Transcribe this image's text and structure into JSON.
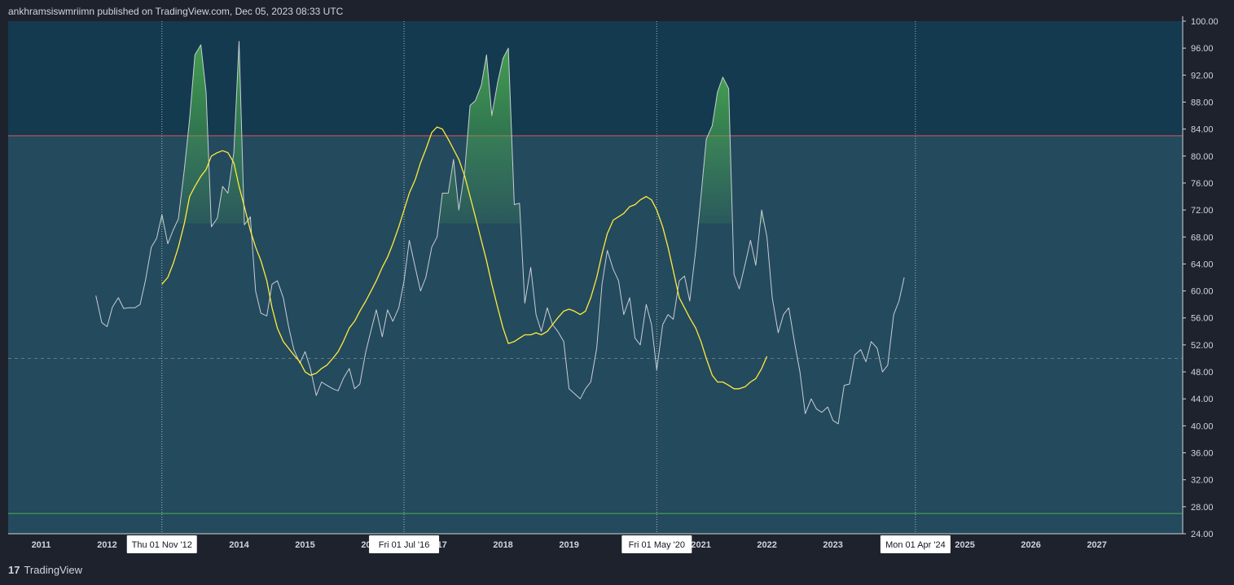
{
  "header": {
    "publish_text": "ankhramsiswmriimn published on TradingView.com, Dec 05, 2023 08:33 UTC"
  },
  "footer": {
    "brand": "TradingView",
    "logo_mark": "17"
  },
  "colors": {
    "background": "#1e222d",
    "plot_top": "#133a4f",
    "plot_bottom": "#244a5e",
    "price_line": "#c9cdd4",
    "ma_line": "#ffeb3b",
    "upper_line": "#e05656",
    "lower_line": "#4caf50",
    "mid_line": "#7f8c99",
    "fill_green": "#4caf50"
  },
  "chart_data": {
    "type": "line",
    "title": "",
    "ylim": [
      24,
      100
    ],
    "y_ticks": [
      "24.00",
      "28.00",
      "32.00",
      "36.00",
      "40.00",
      "44.00",
      "48.00",
      "52.00",
      "56.00",
      "60.00",
      "64.00",
      "68.00",
      "72.00",
      "76.00",
      "80.00",
      "84.00",
      "88.00",
      "92.00",
      "96.00",
      "100.00"
    ],
    "x_range": [
      2010.5,
      2028.3
    ],
    "x_ticks": [
      {
        "label": "2011",
        "x": 2011
      },
      {
        "label": "2012",
        "x": 2012
      },
      {
        "label": "2013",
        "x": 2013
      },
      {
        "label": "2014",
        "x": 2014
      },
      {
        "label": "2015",
        "x": 2015
      },
      {
        "label": "2016",
        "x": 2016
      },
      {
        "label": "2017",
        "x": 2017
      },
      {
        "label": "2018",
        "x": 2018
      },
      {
        "label": "2019",
        "x": 2019
      },
      {
        "label": "2020",
        "x": 2020
      },
      {
        "label": "2021",
        "x": 2021
      },
      {
        "label": "2022",
        "x": 2022
      },
      {
        "label": "2023",
        "x": 2023
      },
      {
        "label": "2024",
        "x": 2024
      },
      {
        "label": "2025",
        "x": 2025
      },
      {
        "label": "2026",
        "x": 2026
      },
      {
        "label": "2027",
        "x": 2027
      }
    ],
    "date_markers": [
      {
        "label": "Thu 01 Nov '12",
        "x": 2012.83
      },
      {
        "label": "Fri 01 Jul '16",
        "x": 2016.5
      },
      {
        "label": "Fri 01 May '20",
        "x": 2020.33
      },
      {
        "label": "Mon 01 Apr '24",
        "x": 2024.25
      }
    ],
    "levels": {
      "upper": 83,
      "lower": 27,
      "mid": 50
    },
    "series": [
      {
        "name": "RSI",
        "points": [
          [
            2011.83,
            59.3
          ],
          [
            2011.92,
            55.3
          ],
          [
            2012.0,
            54.7
          ],
          [
            2012.08,
            57.6
          ],
          [
            2012.17,
            59.0
          ],
          [
            2012.25,
            57.4
          ],
          [
            2012.33,
            57.5
          ],
          [
            2012.42,
            57.5
          ],
          [
            2012.5,
            58.0
          ],
          [
            2012.58,
            61.5
          ],
          [
            2012.67,
            66.5
          ],
          [
            2012.75,
            67.8
          ],
          [
            2012.83,
            71.3
          ],
          [
            2012.92,
            67.0
          ],
          [
            2013.0,
            69.0
          ],
          [
            2013.08,
            70.7
          ],
          [
            2013.17,
            78.0
          ],
          [
            2013.25,
            85.5
          ],
          [
            2013.33,
            95.0
          ],
          [
            2013.42,
            96.5
          ],
          [
            2013.5,
            89.5
          ],
          [
            2013.58,
            69.5
          ],
          [
            2013.67,
            70.8
          ],
          [
            2013.75,
            75.5
          ],
          [
            2013.83,
            74.5
          ],
          [
            2013.92,
            80.5
          ],
          [
            2014.0,
            97.0
          ],
          [
            2014.08,
            69.8
          ],
          [
            2014.17,
            71.0
          ],
          [
            2014.25,
            60.0
          ],
          [
            2014.33,
            56.7
          ],
          [
            2014.42,
            56.3
          ],
          [
            2014.5,
            61.0
          ],
          [
            2014.58,
            61.5
          ],
          [
            2014.67,
            59.0
          ],
          [
            2014.75,
            54.7
          ],
          [
            2014.83,
            51.3
          ],
          [
            2014.92,
            49.3
          ],
          [
            2015.0,
            51.0
          ],
          [
            2015.08,
            48.5
          ],
          [
            2015.17,
            44.5
          ],
          [
            2015.25,
            46.5
          ],
          [
            2015.33,
            46.0
          ],
          [
            2015.42,
            45.5
          ],
          [
            2015.5,
            45.2
          ],
          [
            2015.58,
            47.0
          ],
          [
            2015.67,
            48.5
          ],
          [
            2015.75,
            45.5
          ],
          [
            2015.83,
            46.2
          ],
          [
            2015.92,
            51.0
          ],
          [
            2016.0,
            54.2
          ],
          [
            2016.08,
            57.2
          ],
          [
            2016.17,
            53.2
          ],
          [
            2016.25,
            57.2
          ],
          [
            2016.33,
            55.5
          ],
          [
            2016.42,
            57.5
          ],
          [
            2016.5,
            61.5
          ],
          [
            2016.58,
            67.5
          ],
          [
            2016.67,
            63.5
          ],
          [
            2016.75,
            60.0
          ],
          [
            2016.83,
            62.0
          ],
          [
            2016.92,
            66.5
          ],
          [
            2017.0,
            68.0
          ],
          [
            2017.08,
            74.5
          ],
          [
            2017.17,
            74.5
          ],
          [
            2017.25,
            79.5
          ],
          [
            2017.33,
            72.0
          ],
          [
            2017.42,
            77.8
          ],
          [
            2017.5,
            87.5
          ],
          [
            2017.58,
            88.2
          ],
          [
            2017.67,
            90.5
          ],
          [
            2017.75,
            95.0
          ],
          [
            2017.83,
            86.0
          ],
          [
            2017.92,
            91.0
          ],
          [
            2018.0,
            94.5
          ],
          [
            2018.08,
            96.0
          ],
          [
            2018.17,
            72.8
          ],
          [
            2018.25,
            73.0
          ],
          [
            2018.33,
            58.2
          ],
          [
            2018.42,
            63.5
          ],
          [
            2018.5,
            56.5
          ],
          [
            2018.58,
            54.0
          ],
          [
            2018.67,
            57.5
          ],
          [
            2018.75,
            55.0
          ],
          [
            2018.83,
            54.0
          ],
          [
            2018.92,
            52.5
          ],
          [
            2019.0,
            45.5
          ],
          [
            2019.08,
            44.8
          ],
          [
            2019.17,
            44.0
          ],
          [
            2019.25,
            45.5
          ],
          [
            2019.33,
            46.5
          ],
          [
            2019.42,
            51.5
          ],
          [
            2019.5,
            61.0
          ],
          [
            2019.58,
            66.0
          ],
          [
            2019.67,
            63.2
          ],
          [
            2019.75,
            61.5
          ],
          [
            2019.83,
            56.5
          ],
          [
            2019.92,
            59.0
          ],
          [
            2020.0,
            53.0
          ],
          [
            2020.08,
            52.0
          ],
          [
            2020.17,
            58.0
          ],
          [
            2020.25,
            55.0
          ],
          [
            2020.33,
            48.3
          ],
          [
            2020.42,
            55.0
          ],
          [
            2020.5,
            56.5
          ],
          [
            2020.58,
            55.8
          ],
          [
            2020.67,
            61.5
          ],
          [
            2020.75,
            62.2
          ],
          [
            2020.83,
            58.5
          ],
          [
            2020.92,
            66.0
          ],
          [
            2021.0,
            74.0
          ],
          [
            2021.08,
            82.5
          ],
          [
            2021.17,
            84.5
          ],
          [
            2021.25,
            89.5
          ],
          [
            2021.33,
            91.7
          ],
          [
            2021.42,
            90.0
          ],
          [
            2021.5,
            62.5
          ],
          [
            2021.58,
            60.3
          ],
          [
            2021.67,
            64.0
          ],
          [
            2021.75,
            67.5
          ],
          [
            2021.83,
            63.8
          ],
          [
            2021.92,
            72.0
          ],
          [
            2022.0,
            68.0
          ],
          [
            2022.08,
            59.0
          ],
          [
            2022.17,
            53.8
          ],
          [
            2022.25,
            56.5
          ],
          [
            2022.33,
            57.5
          ],
          [
            2022.42,
            52.2
          ],
          [
            2022.5,
            48.0
          ],
          [
            2022.58,
            41.8
          ],
          [
            2022.67,
            44.0
          ],
          [
            2022.75,
            42.5
          ],
          [
            2022.83,
            42.0
          ],
          [
            2022.92,
            42.8
          ],
          [
            2023.0,
            40.8
          ],
          [
            2023.08,
            40.3
          ],
          [
            2023.17,
            46.0
          ],
          [
            2023.25,
            46.2
          ],
          [
            2023.33,
            50.5
          ],
          [
            2023.42,
            51.3
          ],
          [
            2023.5,
            49.5
          ],
          [
            2023.58,
            52.5
          ],
          [
            2023.67,
            51.5
          ],
          [
            2023.75,
            48.0
          ],
          [
            2023.83,
            49.0
          ],
          [
            2023.92,
            56.5
          ],
          [
            2024.0,
            58.5
          ],
          [
            2024.08,
            62.0
          ]
        ]
      },
      {
        "name": "RSI-based MA",
        "points": [
          [
            2012.83,
            61.0
          ],
          [
            2012.92,
            62.0
          ],
          [
            2013.0,
            64.0
          ],
          [
            2013.08,
            66.5
          ],
          [
            2013.17,
            70.0
          ],
          [
            2013.25,
            74.0
          ],
          [
            2013.33,
            75.5
          ],
          [
            2013.42,
            77.0
          ],
          [
            2013.5,
            78.0
          ],
          [
            2013.58,
            80.0
          ],
          [
            2013.67,
            80.5
          ],
          [
            2013.75,
            80.8
          ],
          [
            2013.83,
            80.5
          ],
          [
            2013.92,
            79.0
          ],
          [
            2014.0,
            75.5
          ],
          [
            2014.08,
            72.5
          ],
          [
            2014.17,
            69.0
          ],
          [
            2014.25,
            66.5
          ],
          [
            2014.33,
            64.5
          ],
          [
            2014.42,
            61.5
          ],
          [
            2014.5,
            57.5
          ],
          [
            2014.58,
            54.5
          ],
          [
            2014.67,
            52.5
          ],
          [
            2014.75,
            51.5
          ],
          [
            2014.83,
            50.5
          ],
          [
            2014.92,
            49.5
          ],
          [
            2015.0,
            48.0
          ],
          [
            2015.08,
            47.5
          ],
          [
            2015.17,
            47.8
          ],
          [
            2015.25,
            48.5
          ],
          [
            2015.33,
            49.0
          ],
          [
            2015.42,
            50.0
          ],
          [
            2015.5,
            51.0
          ],
          [
            2015.58,
            52.5
          ],
          [
            2015.67,
            54.5
          ],
          [
            2015.75,
            55.5
          ],
          [
            2015.83,
            57.0
          ],
          [
            2015.92,
            58.5
          ],
          [
            2016.0,
            60.0
          ],
          [
            2016.08,
            61.5
          ],
          [
            2016.17,
            63.5
          ],
          [
            2016.25,
            65.0
          ],
          [
            2016.33,
            67.0
          ],
          [
            2016.42,
            69.5
          ],
          [
            2016.5,
            72.0
          ],
          [
            2016.58,
            74.5
          ],
          [
            2016.67,
            76.5
          ],
          [
            2016.75,
            79.0
          ],
          [
            2016.83,
            81.0
          ],
          [
            2016.92,
            83.5
          ],
          [
            2017.0,
            84.3
          ],
          [
            2017.08,
            84.0
          ],
          [
            2017.17,
            82.5
          ],
          [
            2017.25,
            81.0
          ],
          [
            2017.33,
            79.5
          ],
          [
            2017.42,
            77.0
          ],
          [
            2017.5,
            74.0
          ],
          [
            2017.58,
            71.0
          ],
          [
            2017.67,
            67.5
          ],
          [
            2017.75,
            64.5
          ],
          [
            2017.83,
            61.0
          ],
          [
            2017.92,
            57.5
          ],
          [
            2018.0,
            54.5
          ],
          [
            2018.08,
            52.2
          ],
          [
            2018.17,
            52.5
          ],
          [
            2018.25,
            53.0
          ],
          [
            2018.33,
            53.5
          ],
          [
            2018.42,
            53.5
          ],
          [
            2018.5,
            53.8
          ],
          [
            2018.58,
            53.5
          ],
          [
            2018.67,
            54.0
          ],
          [
            2018.75,
            55.0
          ],
          [
            2018.83,
            56.0
          ],
          [
            2018.92,
            57.0
          ],
          [
            2019.0,
            57.3
          ],
          [
            2019.08,
            57.0
          ],
          [
            2019.17,
            56.5
          ],
          [
            2019.25,
            57.0
          ],
          [
            2019.33,
            59.0
          ],
          [
            2019.42,
            62.0
          ],
          [
            2019.5,
            65.5
          ],
          [
            2019.58,
            68.5
          ],
          [
            2019.67,
            70.5
          ],
          [
            2019.75,
            71.0
          ],
          [
            2019.83,
            71.5
          ],
          [
            2019.92,
            72.5
          ],
          [
            2020.0,
            72.8
          ],
          [
            2020.08,
            73.5
          ],
          [
            2020.17,
            74.0
          ],
          [
            2020.25,
            73.5
          ],
          [
            2020.33,
            72.0
          ],
          [
            2020.42,
            69.5
          ],
          [
            2020.5,
            66.5
          ],
          [
            2020.58,
            63.0
          ],
          [
            2020.67,
            59.0
          ],
          [
            2020.75,
            57.5
          ],
          [
            2020.83,
            56.0
          ],
          [
            2020.92,
            54.5
          ],
          [
            2021.0,
            52.5
          ],
          [
            2021.08,
            50.0
          ],
          [
            2021.17,
            47.5
          ],
          [
            2021.25,
            46.5
          ],
          [
            2021.33,
            46.5
          ],
          [
            2021.42,
            46.0
          ],
          [
            2021.5,
            45.5
          ],
          [
            2021.58,
            45.5
          ],
          [
            2021.67,
            45.8
          ],
          [
            2021.75,
            46.5
          ],
          [
            2021.83,
            47.0
          ],
          [
            2021.92,
            48.5
          ],
          [
            2022.0,
            50.3
          ]
        ]
      }
    ]
  }
}
